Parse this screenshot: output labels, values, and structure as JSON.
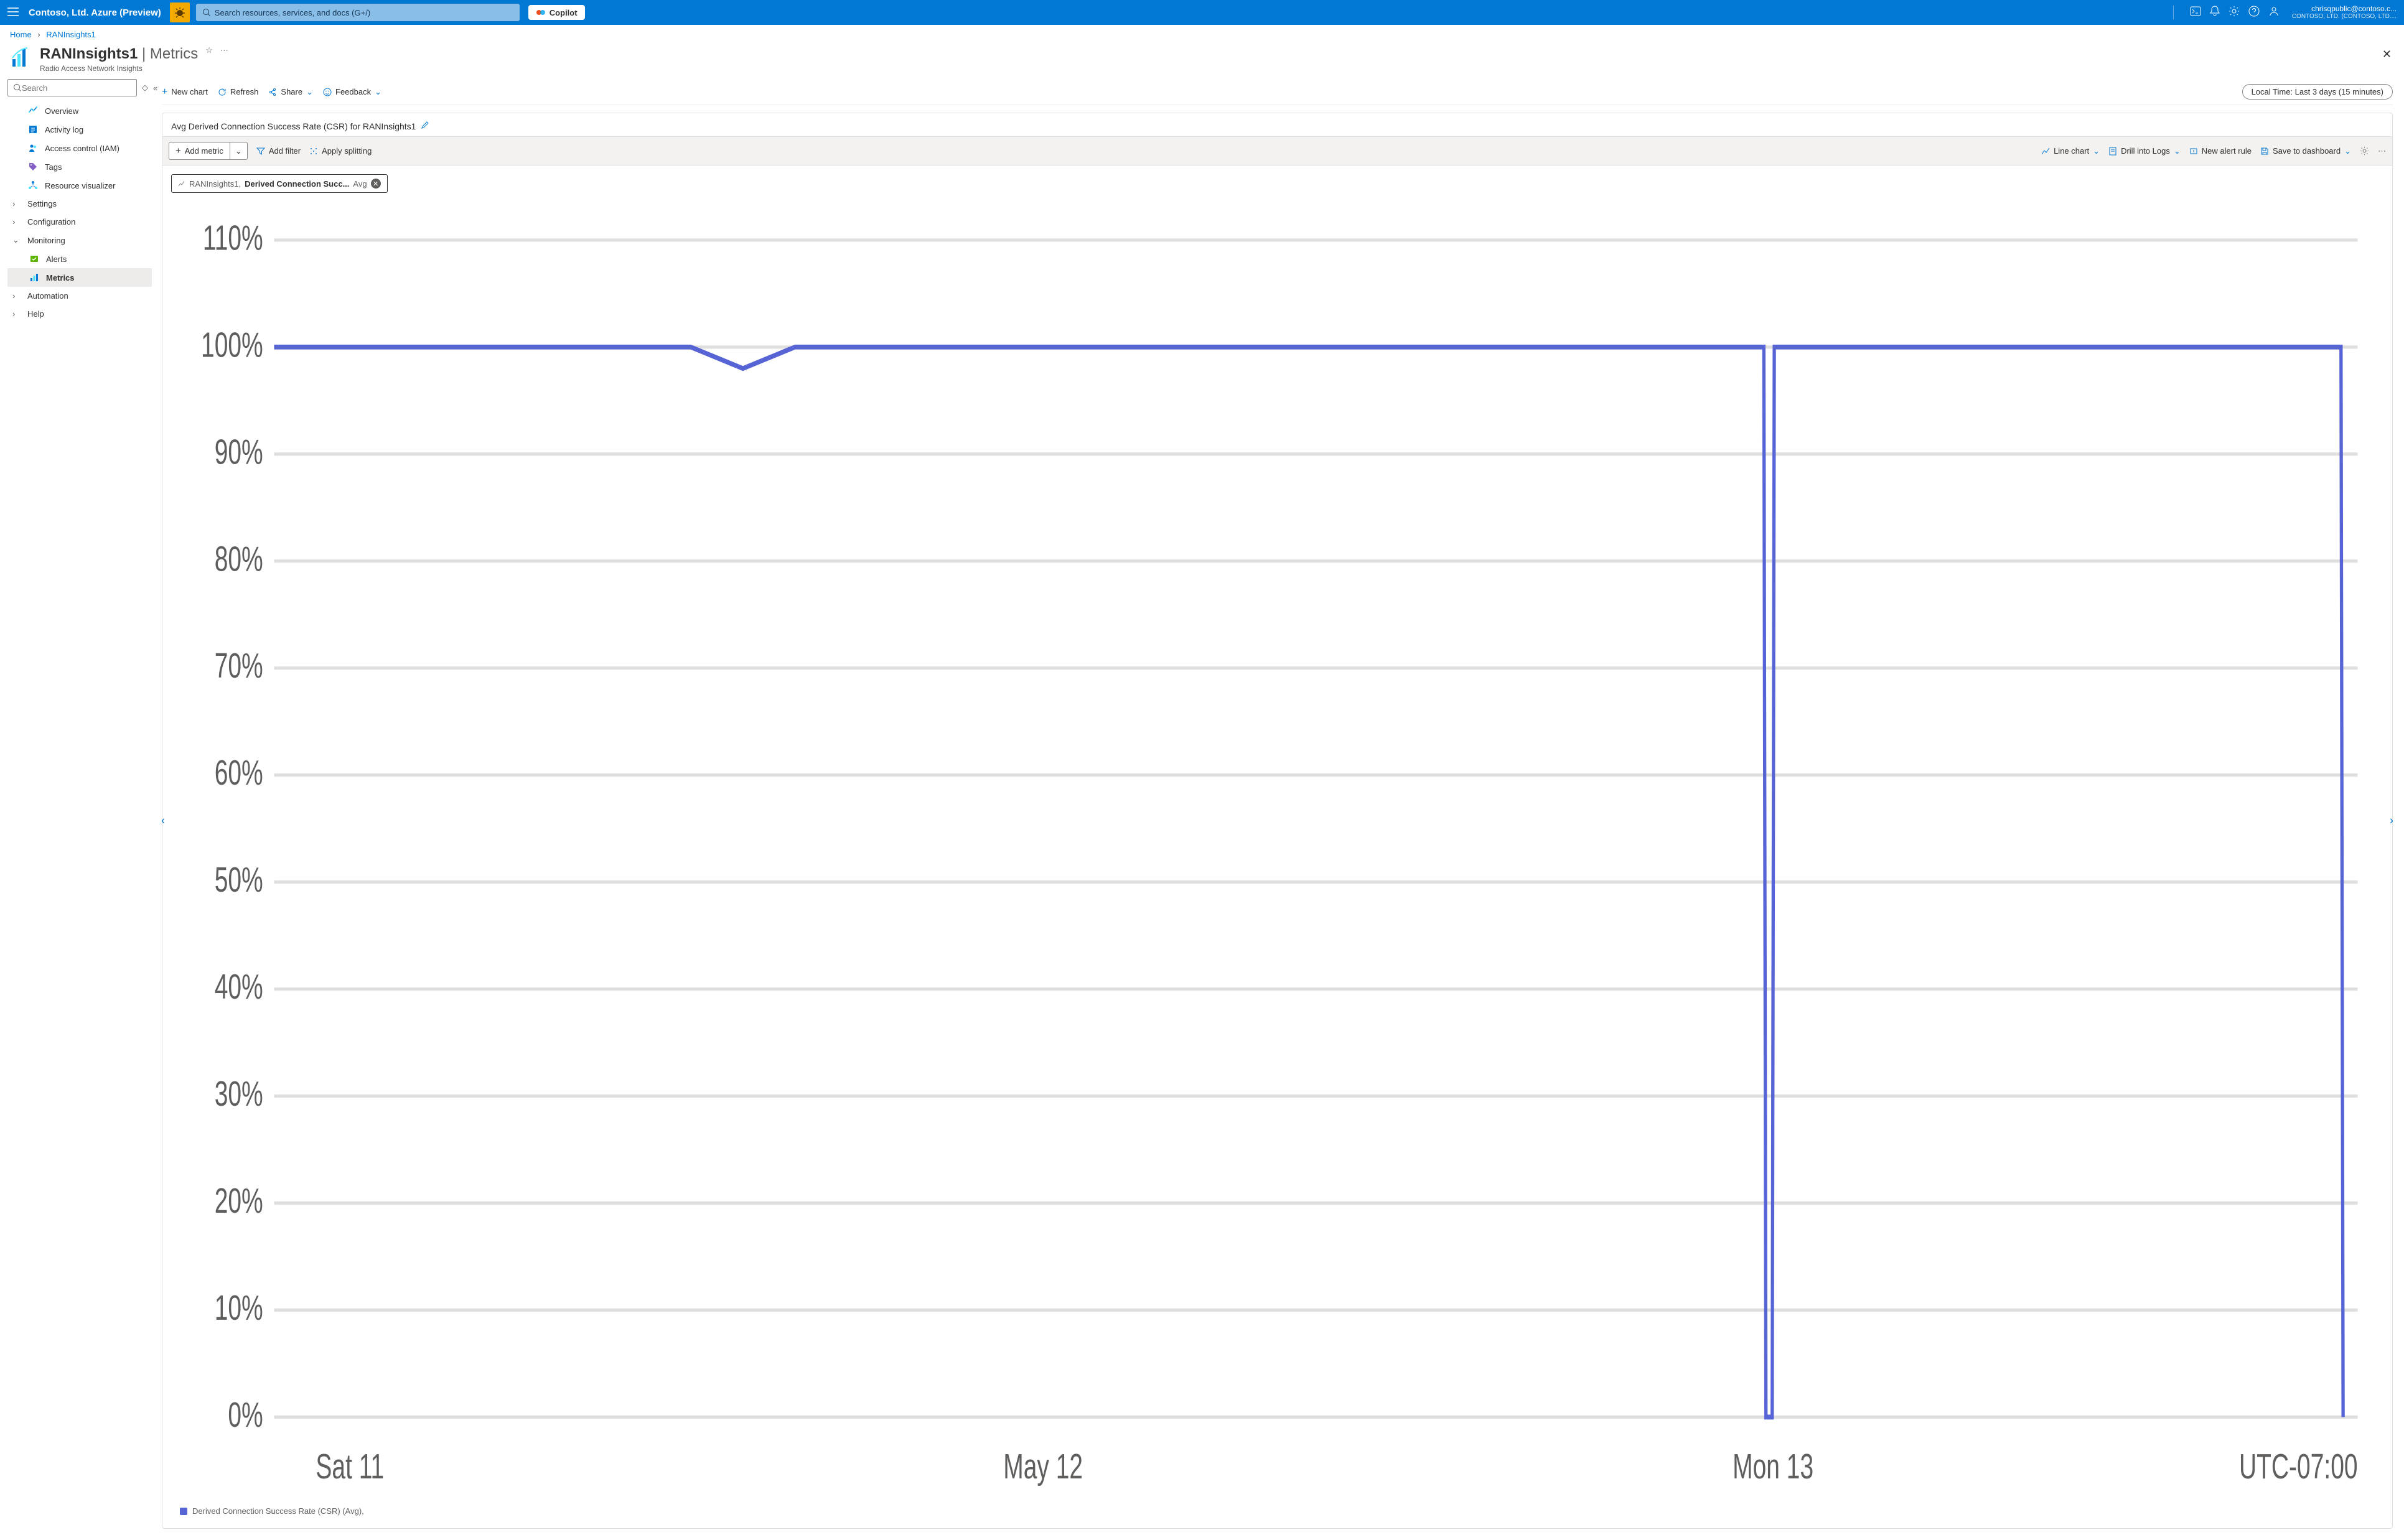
{
  "topbar": {
    "brand": "Contoso, Ltd. Azure (Preview)",
    "search_placeholder": "Search resources, services, and docs (G+/)",
    "copilot": "Copilot",
    "user_email": "chrisqpublic@contoso.c...",
    "user_tenant": "CONTOSO, LTD. (CONTOSO, LTD...."
  },
  "breadcrumb": {
    "home": "Home",
    "current": "RANInsights1"
  },
  "page": {
    "title_main": "RANInsights1",
    "title_suffix": " | Metrics",
    "subtitle": "Radio Access Network Insights"
  },
  "sidebar": {
    "search_placeholder": "Search",
    "items": [
      {
        "label": "Overview",
        "icon": "overview"
      },
      {
        "label": "Activity log",
        "icon": "activitylog"
      },
      {
        "label": "Access control (IAM)",
        "icon": "iam"
      },
      {
        "label": "Tags",
        "icon": "tags"
      },
      {
        "label": "Resource visualizer",
        "icon": "visualizer"
      },
      {
        "label": "Settings",
        "chevron": true
      },
      {
        "label": "Configuration",
        "chevron": true
      },
      {
        "label": "Monitoring",
        "chevron": true,
        "expanded": true
      },
      {
        "label": "Alerts",
        "icon": "alerts",
        "indent": true
      },
      {
        "label": "Metrics",
        "icon": "metrics",
        "indent": true,
        "selected": true
      },
      {
        "label": "Automation",
        "chevron": true
      },
      {
        "label": "Help",
        "chevron": true
      }
    ]
  },
  "cmdbar": {
    "new_chart": "New chart",
    "refresh": "Refresh",
    "share": "Share",
    "feedback": "Feedback",
    "timerange": "Local Time: Last 3 days (15 minutes)"
  },
  "chart": {
    "title": "Avg Derived Connection Success Rate (CSR) for RANInsights1",
    "toolbar": {
      "add_metric": "Add metric",
      "add_filter": "Add filter",
      "apply_splitting": "Apply splitting",
      "line_chart": "Line chart",
      "drill_logs": "Drill into Logs",
      "new_alert": "New alert rule",
      "save_dashboard": "Save to dashboard"
    },
    "chip": {
      "resource": "RANInsights1,",
      "metric": " Derived Connection Succ... ",
      "agg": "Avg"
    },
    "y_axis": {
      "ticks": [
        "110%",
        "100%",
        "90%",
        "80%",
        "70%",
        "60%",
        "50%",
        "40%",
        "30%",
        "20%",
        "10%",
        "0%"
      ],
      "min": 0,
      "max": 110,
      "step": 10
    },
    "x_axis": {
      "ticks": [
        {
          "label": "Sat 11",
          "pos": 0.02
        },
        {
          "label": "May 12",
          "pos": 0.35
        },
        {
          "label": "Mon 13",
          "pos": 0.7
        }
      ],
      "tz_label": "UTC-07:00"
    },
    "series": {
      "color": "#5764d6",
      "points": [
        [
          0.0,
          100
        ],
        [
          0.2,
          100
        ],
        [
          0.225,
          98
        ],
        [
          0.25,
          100
        ],
        [
          0.715,
          100
        ],
        [
          0.716,
          0
        ],
        [
          0.719,
          0
        ],
        [
          0.72,
          100
        ],
        [
          0.992,
          100
        ],
        [
          0.993,
          0
        ]
      ]
    },
    "legend_label": "Derived Connection Success Rate (CSR) (Avg),",
    "grid_color": "#e1dfdd",
    "background": "#ffffff"
  }
}
